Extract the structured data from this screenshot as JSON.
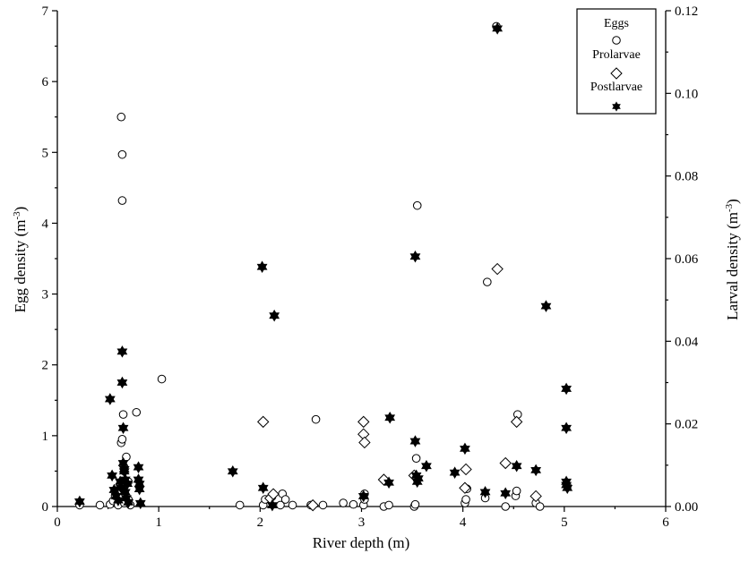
{
  "chart_data": {
    "type": "scatter",
    "xlabel": "River depth (m)",
    "ylabel_left": {
      "text": "Egg density (m",
      "sup": "-3",
      "close": ")"
    },
    "ylabel_right": {
      "text": "Larval density (m",
      "sup": "-3",
      "close": ")"
    },
    "xlim": [
      0,
      6
    ],
    "ylim_left": [
      0,
      7
    ],
    "ylim_right": [
      0,
      0.12
    ],
    "x_ticks": [
      "0",
      "1",
      "2",
      "3",
      "4",
      "5",
      "6"
    ],
    "y_left_ticks": [
      "0",
      "1",
      "2",
      "3",
      "4",
      "5",
      "6",
      "7"
    ],
    "y_right_ticks": [
      "0.00",
      "0.02",
      "0.04",
      "0.06",
      "0.08",
      "0.10",
      "0.12"
    ],
    "grid": false,
    "legend_position": "top-right",
    "series": [
      {
        "name": "Eggs",
        "axis": "left",
        "marker": "circle",
        "points": [
          [
            0.22,
            0.02
          ],
          [
            0.42,
            0.02
          ],
          [
            0.52,
            0.03
          ],
          [
            0.55,
            0.08
          ],
          [
            0.57,
            0.15
          ],
          [
            0.6,
            0.22
          ],
          [
            0.62,
            0.3
          ],
          [
            0.63,
            0.9
          ],
          [
            0.64,
            0.95
          ],
          [
            0.65,
            1.3
          ],
          [
            0.63,
            5.5
          ],
          [
            0.64,
            4.97
          ],
          [
            0.64,
            4.32
          ],
          [
            0.66,
            0.5
          ],
          [
            0.68,
            0.7
          ],
          [
            0.7,
            0.35
          ],
          [
            0.72,
            0.02
          ],
          [
            0.78,
            1.33
          ],
          [
            0.6,
            0.02
          ],
          [
            0.66,
            0.05
          ],
          [
            0.7,
            0.1
          ],
          [
            1.03,
            1.8
          ],
          [
            1.8,
            0.02
          ],
          [
            2.03,
            0.02
          ],
          [
            2.05,
            0.1
          ],
          [
            2.2,
            0.02
          ],
          [
            2.22,
            0.18
          ],
          [
            2.25,
            0.1
          ],
          [
            2.32,
            0.02
          ],
          [
            2.5,
            0.02
          ],
          [
            2.55,
            1.23
          ],
          [
            2.62,
            0.02
          ],
          [
            2.82,
            0.05
          ],
          [
            2.92,
            0.03
          ],
          [
            3.02,
            0.02
          ],
          [
            3.03,
            0.1
          ],
          [
            3.03,
            0.18
          ],
          [
            3.22,
            0.0
          ],
          [
            3.27,
            0.02
          ],
          [
            3.52,
            0.0
          ],
          [
            3.53,
            0.03
          ],
          [
            3.54,
            0.68
          ],
          [
            3.55,
            4.25
          ],
          [
            4.02,
            0.05
          ],
          [
            4.03,
            0.1
          ],
          [
            4.04,
            0.25
          ],
          [
            4.22,
            0.12
          ],
          [
            4.24,
            3.17
          ],
          [
            4.33,
            6.78
          ],
          [
            4.42,
            0.0
          ],
          [
            4.52,
            0.15
          ],
          [
            4.53,
            0.22
          ],
          [
            4.54,
            1.3
          ],
          [
            4.72,
            0.05
          ],
          [
            4.76,
            0.0
          ]
        ]
      },
      {
        "name": "Prolarvae",
        "axis": "right",
        "marker": "diamond",
        "points": [
          [
            2.03,
            0.0205
          ],
          [
            2.1,
            0.002
          ],
          [
            2.13,
            0.003
          ],
          [
            2.52,
            0.0003
          ],
          [
            3.02,
            0.0205
          ],
          [
            3.02,
            0.0175
          ],
          [
            3.03,
            0.0155
          ],
          [
            3.22,
            0.0065
          ],
          [
            3.52,
            0.0075
          ],
          [
            4.02,
            0.0045
          ],
          [
            4.03,
            0.009
          ],
          [
            4.34,
            0.0575
          ],
          [
            4.42,
            0.0105
          ],
          [
            4.53,
            0.0205
          ],
          [
            4.72,
            0.0025
          ]
        ]
      },
      {
        "name": "Postlarvae",
        "axis": "right",
        "marker": "star",
        "points": [
          [
            0.22,
            0.0012
          ],
          [
            0.52,
            0.026
          ],
          [
            0.54,
            0.0075
          ],
          [
            0.56,
            0.004
          ],
          [
            0.58,
            0.0025
          ],
          [
            0.6,
            0.0015
          ],
          [
            0.62,
            0.006
          ],
          [
            0.63,
            0.0045
          ],
          [
            0.64,
            0.0375
          ],
          [
            0.64,
            0.03
          ],
          [
            0.65,
            0.019
          ],
          [
            0.65,
            0.0105
          ],
          [
            0.66,
            0.009
          ],
          [
            0.66,
            0.0085
          ],
          [
            0.67,
            0.0065
          ],
          [
            0.67,
            0.0035
          ],
          [
            0.68,
            0.002
          ],
          [
            0.69,
            0.0055
          ],
          [
            0.7,
            0.001
          ],
          [
            0.8,
            0.0095
          ],
          [
            0.8,
            0.0065
          ],
          [
            0.81,
            0.0055
          ],
          [
            0.81,
            0.0042
          ],
          [
            0.82,
            0.0008
          ],
          [
            1.73,
            0.0085
          ],
          [
            2.02,
            0.058
          ],
          [
            2.03,
            0.0045
          ],
          [
            2.12,
            0.0003
          ],
          [
            2.14,
            0.0462
          ],
          [
            3.02,
            0.0025
          ],
          [
            3.27,
            0.0058
          ],
          [
            3.28,
            0.0215
          ],
          [
            3.53,
            0.0605
          ],
          [
            3.53,
            0.0158
          ],
          [
            3.54,
            0.0075
          ],
          [
            3.55,
            0.006
          ],
          [
            3.56,
            0.0068
          ],
          [
            3.64,
            0.0098
          ],
          [
            3.92,
            0.0082
          ],
          [
            4.02,
            0.014
          ],
          [
            4.22,
            0.0035
          ],
          [
            4.34,
            0.1157
          ],
          [
            4.42,
            0.0032
          ],
          [
            4.53,
            0.0098
          ],
          [
            4.72,
            0.0088
          ],
          [
            4.82,
            0.0485
          ],
          [
            5.02,
            0.0285
          ],
          [
            5.02,
            0.019
          ],
          [
            5.02,
            0.006
          ],
          [
            5.02,
            0.0052
          ],
          [
            5.03,
            0.0045
          ]
        ]
      }
    ]
  }
}
